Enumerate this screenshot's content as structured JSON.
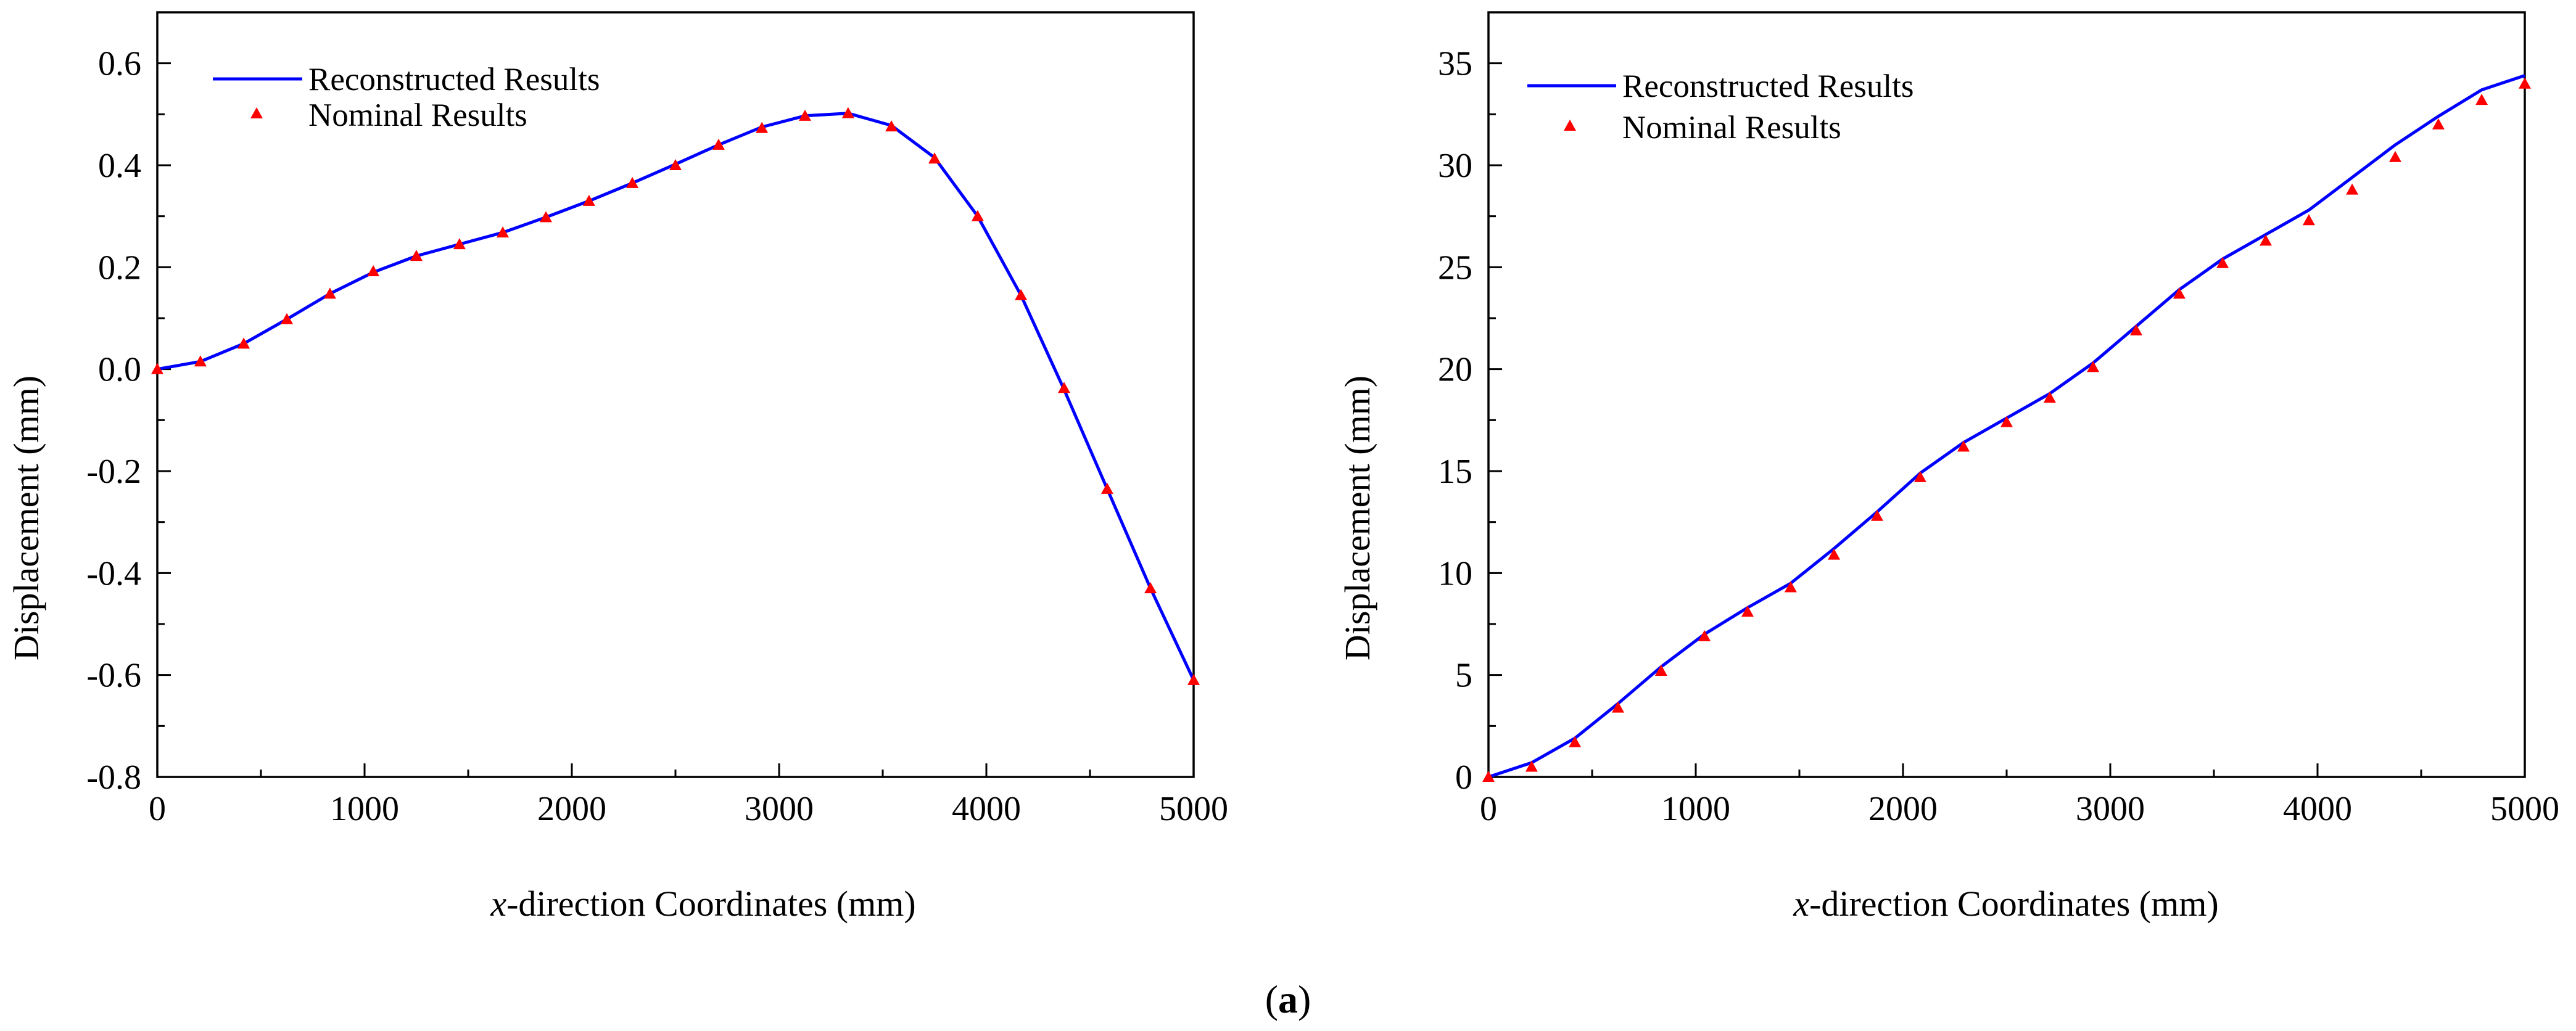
{
  "caption": {
    "open": "(",
    "letter": "a",
    "close": ")"
  },
  "colors": {
    "reconstructed": "#0000ff",
    "nominal": "#ff0000",
    "axis": "#000000"
  },
  "legend": {
    "reconstructed": "Reconstructed Results",
    "nominal": "Nominal Results"
  },
  "chart_data": [
    {
      "type": "line",
      "title": "",
      "xlabel_italic": "x",
      "xlabel_rest": "-direction Coordinates (mm)",
      "ylabel": "Displacement (mm)",
      "xlim": [
        0,
        5000
      ],
      "ylim": [
        -0.8,
        0.7
      ],
      "xticks": [
        0,
        1000,
        2000,
        3000,
        4000,
        5000
      ],
      "xtick_labels": [
        "0",
        "1000",
        "2000",
        "3000",
        "4000",
        "5000"
      ],
      "yticks": [
        -0.8,
        -0.6,
        -0.4,
        -0.2,
        0.0,
        0.2,
        0.4,
        0.6
      ],
      "ytick_labels": [
        "-0.8",
        "-0.6",
        "-0.4",
        "-0.2",
        "0.0",
        "0.2",
        "0.4",
        "0.6"
      ],
      "legend_position": "top-left",
      "x": [
        0,
        208,
        417,
        625,
        833,
        1042,
        1250,
        1458,
        1667,
        1875,
        2083,
        2292,
        2500,
        2708,
        2917,
        3125,
        3333,
        3542,
        3750,
        3958,
        4167,
        4375,
        4583,
        4792,
        5000
      ],
      "series": [
        {
          "name": "Reconstructed Results",
          "style": "line",
          "values": [
            0.0,
            0.015,
            0.05,
            0.098,
            0.148,
            0.19,
            0.222,
            0.245,
            0.268,
            0.298,
            0.33,
            0.365,
            0.402,
            0.44,
            0.475,
            0.497,
            0.502,
            0.478,
            0.415,
            0.3,
            0.145,
            -0.04,
            -0.235,
            -0.43,
            -0.61
          ]
        },
        {
          "name": "Nominal Results",
          "style": "triangle",
          "values": [
            0.0,
            0.015,
            0.05,
            0.098,
            0.148,
            0.192,
            0.222,
            0.245,
            0.268,
            0.298,
            0.33,
            0.365,
            0.4,
            0.44,
            0.473,
            0.497,
            0.502,
            0.476,
            0.413,
            0.3,
            0.145,
            -0.037,
            -0.235,
            -0.43,
            -0.61
          ]
        }
      ]
    },
    {
      "type": "line",
      "title": "",
      "xlabel_italic": "x",
      "xlabel_rest": "-direction Coordinates (mm)",
      "ylabel": "Displacement (mm)",
      "xlim": [
        0,
        5000
      ],
      "ylim": [
        0,
        37.5
      ],
      "xticks": [
        0,
        1000,
        2000,
        3000,
        4000,
        5000
      ],
      "xtick_labels": [
        "0",
        "1000",
        "2000",
        "3000",
        "4000",
        "5000"
      ],
      "yticks": [
        0,
        5,
        10,
        15,
        20,
        25,
        30,
        35
      ],
      "ytick_labels": [
        "0",
        "5",
        "10",
        "15",
        "20",
        "25",
        "30",
        "35"
      ],
      "legend_position": "top-left",
      "x": [
        0,
        208,
        417,
        625,
        833,
        1042,
        1250,
        1458,
        1667,
        1875,
        2083,
        2292,
        2500,
        2708,
        2917,
        3125,
        3333,
        3542,
        3750,
        3958,
        4167,
        4375,
        4583,
        4792,
        5000
      ],
      "series": [
        {
          "name": "Reconstructed Results",
          "style": "line",
          "values": [
            0.0,
            0.7,
            1.9,
            3.6,
            5.4,
            7.0,
            8.3,
            9.5,
            11.2,
            13.0,
            14.9,
            16.4,
            17.6,
            18.8,
            20.3,
            22.1,
            23.9,
            25.4,
            26.6,
            27.8,
            29.4,
            31.0,
            32.4,
            33.7,
            34.4
          ]
        },
        {
          "name": "Nominal Results",
          "style": "triangle",
          "values": [
            0.0,
            0.5,
            1.7,
            3.4,
            5.2,
            6.9,
            8.1,
            9.3,
            10.9,
            12.8,
            14.7,
            16.2,
            17.4,
            18.6,
            20.1,
            21.9,
            23.7,
            25.2,
            26.3,
            27.3,
            28.8,
            30.4,
            32.0,
            33.2,
            34.0
          ]
        }
      ]
    }
  ]
}
